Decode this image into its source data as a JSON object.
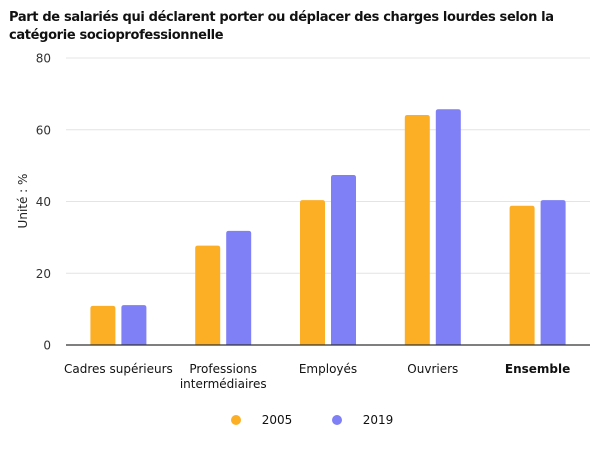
{
  "chart_data": {
    "type": "bar",
    "title": "Part de salariés qui déclarent porter ou déplacer des charges lourdes selon la catégorie socioprofessionnelle",
    "xlabel": "",
    "ylabel": "Unité : %",
    "ylim": [
      0,
      80
    ],
    "yticks": [
      0,
      20,
      40,
      60,
      80
    ],
    "grid": true,
    "legend_position": "bottom",
    "categories": [
      {
        "label": "Cadres supérieurs",
        "bold": false
      },
      {
        "label": "Professions intermédiaires",
        "bold": false
      },
      {
        "label": "Employés",
        "bold": false
      },
      {
        "label": "Ouvriers",
        "bold": false
      },
      {
        "label": "Ensemble",
        "bold": true
      }
    ],
    "series": [
      {
        "name": "2005",
        "color": "#fcaf25",
        "values": [
          10.9,
          27.7,
          40.4,
          64.1,
          38.8
        ]
      },
      {
        "name": "2019",
        "color": "#7f7ff6",
        "values": [
          11.1,
          31.8,
          47.4,
          65.7,
          40.4
        ]
      }
    ]
  }
}
